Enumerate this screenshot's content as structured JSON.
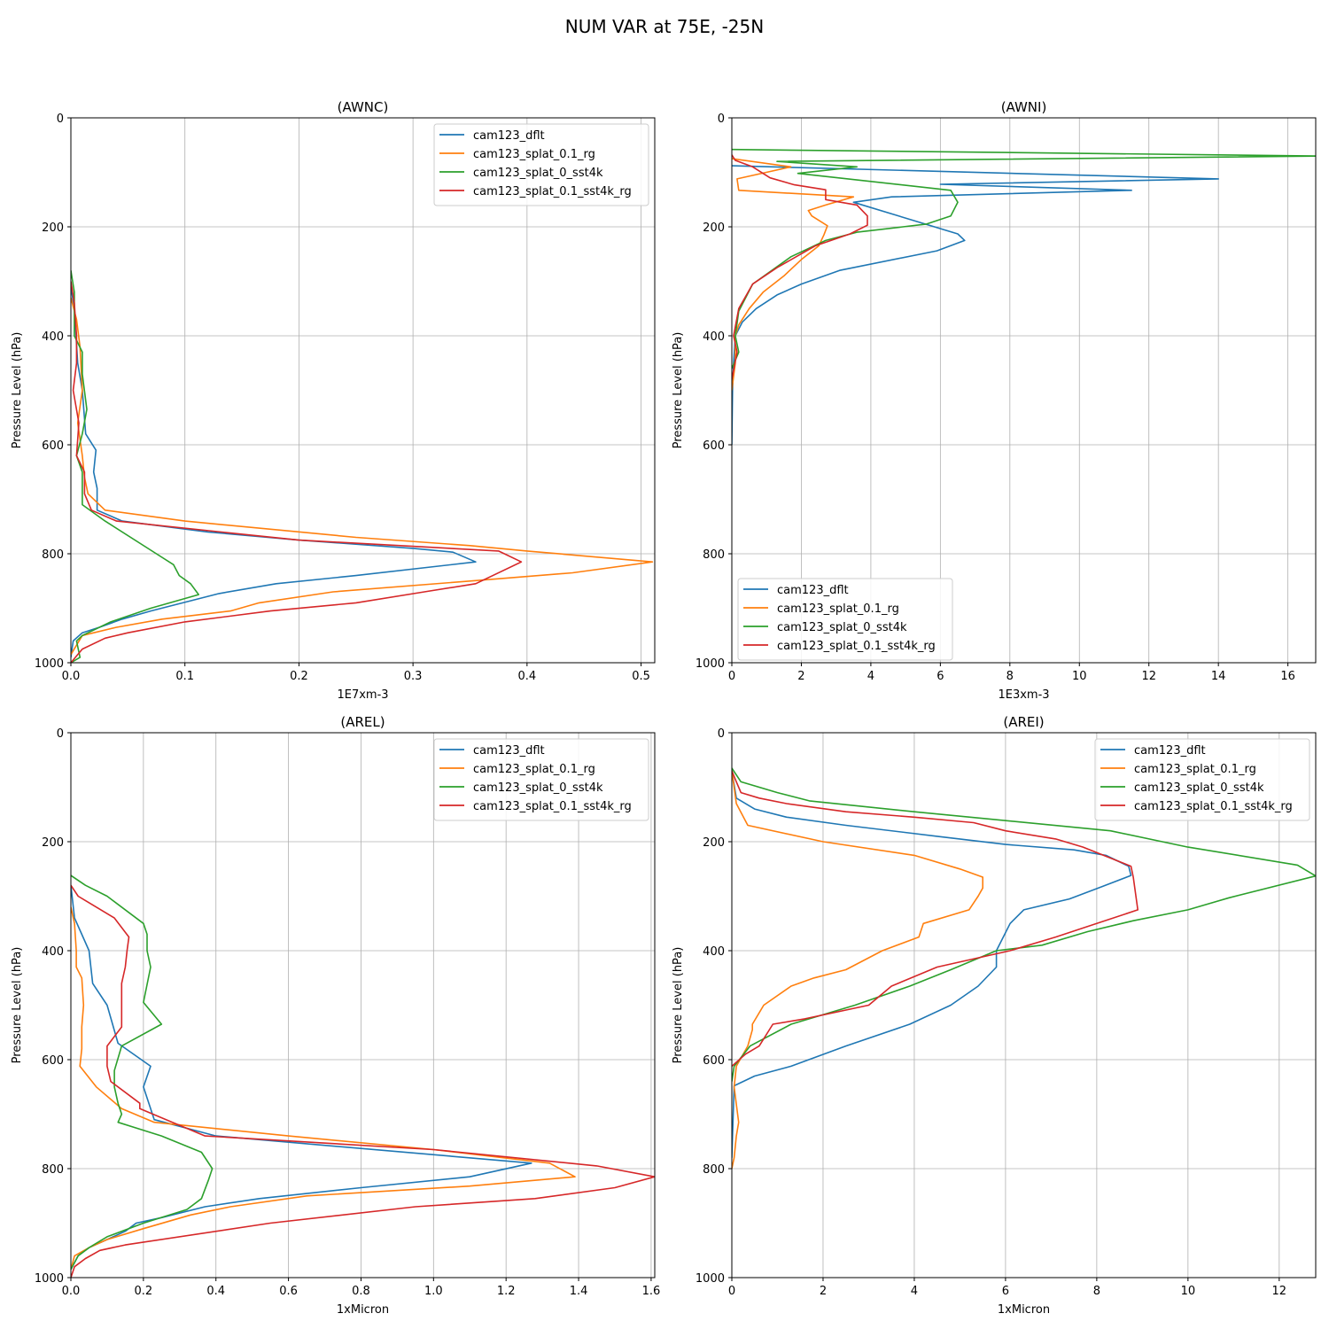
{
  "suptitle": "NUM VAR at 75E, -25N",
  "series_names": [
    "cam123_dflt",
    "cam123_splat_0.1_rg",
    "cam123_splat_0_sst4k",
    "cam123_splat_0.1_sst4k_rg"
  ],
  "colors": [
    "#1f77b4",
    "#ff7f0e",
    "#2ca02c",
    "#d62728"
  ],
  "chart_data": [
    {
      "type": "line",
      "title": "(AWNC)",
      "xlabel": "1E7xm-3",
      "ylabel": "Pressure Level (hPa)",
      "xlim": [
        0,
        0.512
      ],
      "ylim": [
        1000,
        0
      ],
      "xticks": [
        0,
        0.1,
        0.2,
        0.3,
        0.4,
        0.5
      ],
      "xtick_labels": [
        "0.0",
        "0.1",
        "0.2",
        "0.3",
        "0.4",
        "0.5"
      ],
      "yticks": [
        0,
        200,
        400,
        600,
        800,
        1000
      ],
      "legend": "upper right",
      "grid": true,
      "series": [
        {
          "name": "cam123_dflt",
          "x": [
            0.0,
            0.003,
            0.006,
            0.01,
            0.013,
            0.022,
            0.02,
            0.023,
            0.023,
            0.045,
            0.12,
            0.2,
            0.3,
            0.335,
            0.355,
            0.25,
            0.18,
            0.13,
            0.07,
            0.045,
            0.025,
            0.01,
            0.002,
            0.0
          ],
          "p": [
            310,
            350,
            450,
            500,
            580,
            610,
            650,
            680,
            720,
            740,
            760,
            775,
            790,
            797,
            815,
            840,
            855,
            873,
            905,
            920,
            935,
            945,
            960,
            990
          ]
        },
        {
          "name": "cam123_splat_0.1_rg",
          "x": [
            0.0,
            0.005,
            0.008,
            0.01,
            0.006,
            0.01,
            0.012,
            0.015,
            0.03,
            0.1,
            0.25,
            0.35,
            0.4,
            0.51,
            0.44,
            0.35,
            0.23,
            0.165,
            0.14,
            0.08,
            0.04,
            0.01,
            0.0
          ],
          "p": [
            330,
            370,
            420,
            500,
            560,
            620,
            660,
            690,
            720,
            740,
            770,
            785,
            795,
            815,
            835,
            850,
            870,
            890,
            905,
            920,
            935,
            950,
            985
          ]
        },
        {
          "name": "cam123_splat_0_sst4k",
          "x": [
            0.0,
            0.003,
            0.003,
            0.01,
            0.01,
            0.014,
            0.01,
            0.005,
            0.01,
            0.01,
            0.03,
            0.075,
            0.09,
            0.095,
            0.105,
            0.112,
            0.07,
            0.035,
            0.01,
            0.005,
            0.008,
            0.0
          ],
          "p": [
            280,
            320,
            400,
            430,
            470,
            535,
            580,
            620,
            650,
            710,
            740,
            800,
            820,
            840,
            855,
            875,
            900,
            925,
            950,
            960,
            990,
            1000
          ]
        },
        {
          "name": "cam123_splat_0.1_sst4k_rg",
          "x": [
            0.0,
            0.003,
            0.005,
            0.005,
            0.002,
            0.007,
            0.005,
            0.012,
            0.012,
            0.018,
            0.04,
            0.2,
            0.375,
            0.395,
            0.355,
            0.31,
            0.25,
            0.175,
            0.1,
            0.05,
            0.03,
            0.01,
            0.0
          ],
          "p": [
            300,
            340,
            400,
            450,
            500,
            560,
            620,
            650,
            690,
            720,
            740,
            775,
            795,
            815,
            855,
            870,
            890,
            905,
            925,
            945,
            955,
            975,
            1000
          ]
        }
      ]
    },
    {
      "type": "line",
      "title": "(AWNI)",
      "xlabel": "1E3xm-3",
      "ylabel": "Pressure Level (hPa)",
      "xlim": [
        0,
        16.8
      ],
      "ylim": [
        1000,
        0
      ],
      "xticks": [
        0,
        2,
        4,
        6,
        8,
        10,
        12,
        14,
        16
      ],
      "xtick_labels": [
        "0",
        "2",
        "4",
        "6",
        "8",
        "10",
        "12",
        "14",
        "16"
      ],
      "yticks": [
        0,
        200,
        400,
        600,
        800,
        1000
      ],
      "legend": "lower left",
      "grid": true,
      "series": [
        {
          "name": "cam123_dflt",
          "x": [
            0.0,
            14.0,
            6.0,
            11.5,
            4.6,
            3.5,
            6.5,
            6.7,
            5.9,
            3.1,
            2.0,
            1.3,
            0.7,
            0.3,
            0.1,
            0.05,
            0.02,
            0.0
          ],
          "p": [
            88,
            112,
            122,
            133,
            145,
            155,
            213,
            225,
            244,
            280,
            305,
            325,
            350,
            375,
            400,
            450,
            500,
            600
          ]
        },
        {
          "name": "cam123_splat_0.1_rg",
          "x": [
            0.0,
            1.7,
            0.15,
            0.2,
            3.5,
            2.7,
            2.2,
            2.3,
            2.75,
            2.65,
            2.5,
            2.0,
            1.5,
            0.9,
            0.5,
            0.2,
            0.1,
            0.1,
            0.0
          ],
          "p": [
            75,
            90,
            112,
            133,
            145,
            160,
            170,
            180,
            198,
            215,
            235,
            260,
            290,
            320,
            350,
            380,
            400,
            450,
            500
          ]
        },
        {
          "name": "cam123_splat_0_sst4k",
          "x": [
            0.0,
            17.0,
            1.3,
            3.6,
            1.9,
            6.3,
            6.5,
            6.3,
            5.6,
            3.6,
            2.7,
            1.7,
            0.6,
            0.2,
            0.1,
            0.2,
            0.0
          ],
          "p": [
            58,
            70,
            80,
            90,
            102,
            133,
            155,
            180,
            195,
            210,
            225,
            255,
            305,
            355,
            400,
            430,
            460
          ]
        },
        {
          "name": "cam123_splat_0.1_sst4k_rg",
          "x": [
            0.0,
            0.1,
            0.6,
            1.1,
            1.8,
            2.7,
            2.7,
            3.6,
            3.9,
            3.9,
            3.4,
            2.4,
            1.3,
            0.6,
            0.2,
            0.05,
            0.15,
            0.0
          ],
          "p": [
            68,
            78,
            90,
            110,
            123,
            132,
            150,
            160,
            180,
            197,
            213,
            235,
            275,
            305,
            350,
            400,
            430,
            480
          ]
        }
      ]
    },
    {
      "type": "line",
      "title": "(AREL)",
      "xlabel": "1xMicron",
      "ylabel": "Pressure Level (hPa)",
      "xlim": [
        0,
        1.61
      ],
      "ylim": [
        1000,
        0
      ],
      "xticks": [
        0,
        0.2,
        0.4,
        0.6,
        0.8,
        1.0,
        1.2,
        1.4,
        1.6
      ],
      "xtick_labels": [
        "0.0",
        "0.2",
        "0.4",
        "0.6",
        "0.8",
        "1.0",
        "1.2",
        "1.4",
        "1.6"
      ],
      "yticks": [
        0,
        200,
        400,
        600,
        800,
        1000
      ],
      "legend": "upper right",
      "grid": true,
      "series": [
        {
          "name": "cam123_dflt",
          "x": [
            0.0,
            0.01,
            0.03,
            0.05,
            0.06,
            0.1,
            0.13,
            0.22,
            0.2,
            0.23,
            0.4,
            1.27,
            1.1,
            0.8,
            0.52,
            0.37,
            0.25,
            0.18,
            0.15,
            0.1,
            0.05,
            0.02,
            0.0
          ],
          "p": [
            280,
            340,
            370,
            400,
            460,
            500,
            570,
            612,
            650,
            710,
            740,
            790,
            815,
            835,
            855,
            870,
            890,
            900,
            915,
            930,
            945,
            960,
            985
          ]
        },
        {
          "name": "cam123_splat_0.1_rg",
          "x": [
            0.0,
            0.01,
            0.015,
            0.015,
            0.03,
            0.035,
            0.03,
            0.03,
            0.025,
            0.07,
            0.14,
            0.23,
            0.6,
            1.0,
            1.32,
            1.39,
            1.1,
            0.65,
            0.44,
            0.33,
            0.2,
            0.1,
            0.05,
            0.01,
            0.0
          ],
          "p": [
            320,
            350,
            400,
            430,
            450,
            500,
            540,
            580,
            612,
            650,
            690,
            715,
            740,
            765,
            790,
            815,
            832,
            850,
            870,
            885,
            910,
            930,
            945,
            960,
            985
          ]
        },
        {
          "name": "cam123_splat_0_sst4k",
          "x": [
            0.0,
            0.04,
            0.1,
            0.2,
            0.21,
            0.21,
            0.22,
            0.2,
            0.25,
            0.14,
            0.12,
            0.12,
            0.13,
            0.14,
            0.13,
            0.25,
            0.36,
            0.39,
            0.38,
            0.36,
            0.32,
            0.2,
            0.1,
            0.05,
            0.02,
            0.0
          ],
          "p": [
            262,
            280,
            300,
            350,
            370,
            400,
            430,
            495,
            535,
            575,
            620,
            650,
            680,
            700,
            715,
            740,
            770,
            800,
            820,
            855,
            875,
            900,
            925,
            945,
            960,
            985
          ]
        },
        {
          "name": "cam123_splat_0.1_sst4k_rg",
          "x": [
            0.0,
            0.02,
            0.12,
            0.16,
            0.155,
            0.15,
            0.14,
            0.14,
            0.14,
            0.14,
            0.1,
            0.1,
            0.11,
            0.19,
            0.19,
            0.28,
            0.37,
            1.0,
            1.45,
            1.61,
            1.5,
            1.28,
            0.95,
            0.55,
            0.15,
            0.08,
            0.04,
            0.01,
            0.0
          ],
          "p": [
            280,
            300,
            340,
            375,
            400,
            430,
            460,
            500,
            535,
            540,
            575,
            612,
            640,
            680,
            690,
            715,
            740,
            765,
            795,
            815,
            835,
            855,
            870,
            900,
            940,
            950,
            965,
            980,
            1000
          ]
        }
      ]
    },
    {
      "type": "line",
      "title": "(AREI)",
      "xlabel": "1xMicron",
      "ylabel": "Pressure Level (hPa)",
      "xlim": [
        0,
        12.8
      ],
      "ylim": [
        1000,
        0
      ],
      "xticks": [
        0,
        2,
        4,
        6,
        8,
        10,
        12
      ],
      "xtick_labels": [
        "0",
        "2",
        "4",
        "6",
        "8",
        "10",
        "12"
      ],
      "yticks": [
        0,
        200,
        400,
        600,
        800,
        1000
      ],
      "legend": "upper right",
      "grid": true,
      "series": [
        {
          "name": "cam123_dflt",
          "x": [
            0.0,
            0.1,
            0.5,
            1.2,
            2.5,
            4.5,
            6.0,
            7.5,
            8.2,
            8.7,
            8.75,
            8.1,
            7.4,
            6.4,
            6.1,
            5.8,
            5.8,
            5.4,
            4.8,
            3.9,
            2.5,
            1.3,
            0.5,
            0.05,
            0.0
          ],
          "p": [
            70,
            120,
            140,
            155,
            170,
            190,
            205,
            215,
            225,
            245,
            262,
            283,
            305,
            325,
            350,
            400,
            430,
            465,
            500,
            535,
            575,
            612,
            630,
            648,
            780
          ]
        },
        {
          "name": "cam123_splat_0.1_rg",
          "x": [
            0.0,
            0.1,
            0.35,
            2.0,
            4.0,
            5.0,
            5.5,
            5.5,
            5.4,
            5.2,
            4.2,
            4.1,
            3.3,
            2.5,
            1.8,
            1.3,
            0.7,
            0.45,
            0.45,
            0.35,
            0.1,
            0.05,
            0.15,
            0.1,
            0.05,
            0.0
          ],
          "p": [
            70,
            130,
            170,
            200,
            225,
            250,
            265,
            285,
            300,
            325,
            350,
            375,
            400,
            435,
            450,
            465,
            500,
            535,
            545,
            575,
            612,
            650,
            715,
            740,
            780,
            800
          ]
        },
        {
          "name": "cam123_splat_0_sst4k",
          "x": [
            0.0,
            0.2,
            1.0,
            1.7,
            4.0,
            8.3,
            10.0,
            12.4,
            12.8,
            10.9,
            10.0,
            8.8,
            7.8,
            6.8,
            5.8,
            4.8,
            3.9,
            2.7,
            1.3,
            0.4,
            0.05,
            0.0
          ],
          "p": [
            65,
            90,
            110,
            125,
            145,
            180,
            210,
            243,
            263,
            303,
            325,
            345,
            365,
            390,
            400,
            435,
            465,
            500,
            535,
            575,
            612,
            640
          ]
        },
        {
          "name": "cam123_splat_0.1_sst4k_rg",
          "x": [
            0.0,
            0.1,
            0.2,
            0.6,
            1.2,
            2.5,
            4.0,
            5.3,
            6.0,
            7.1,
            7.7,
            8.75,
            8.8,
            8.9,
            8.0,
            7.1,
            6.1,
            4.5,
            3.5,
            3.0,
            1.6,
            0.9,
            0.6,
            0.3,
            0.0
          ],
          "p": [
            70,
            90,
            110,
            120,
            130,
            145,
            155,
            165,
            180,
            195,
            210,
            245,
            265,
            325,
            350,
            375,
            400,
            430,
            465,
            500,
            525,
            535,
            575,
            590,
            612
          ]
        }
      ]
    }
  ]
}
